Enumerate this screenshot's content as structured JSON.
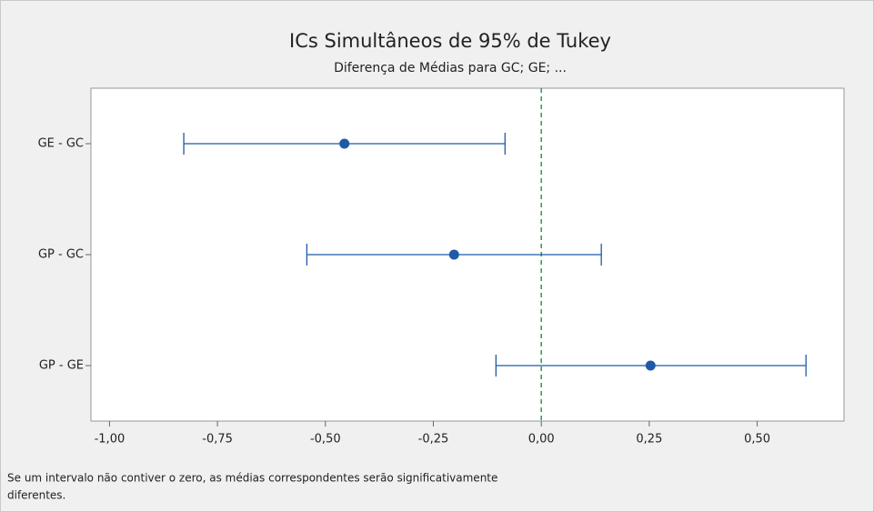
{
  "chart_data": {
    "type": "interval",
    "title": "ICs Simultâneos de 95% de Tukey",
    "subtitle": "Diferença de Médias para GC; GE; ...",
    "categories": [
      "GE - GC",
      "GP - GC",
      "GP - GE"
    ],
    "values": [
      -0.456,
      -0.202,
      0.253
    ],
    "lower": [
      -0.828,
      -0.543,
      -0.105
    ],
    "upper": [
      -0.084,
      0.139,
      0.613
    ],
    "color": "#1f5aa6",
    "reference_line": 0,
    "reference_color": "#2e9a47",
    "xlim": [
      -1.043,
      0.701
    ],
    "xticks": [
      {
        "value": -1,
        "label": "-1,00"
      },
      {
        "value": -0.75,
        "label": "-0,75"
      },
      {
        "value": -0.5,
        "label": "-0,50"
      },
      {
        "value": -0.25,
        "label": "-0,25"
      },
      {
        "value": 0,
        "label": "0,00"
      },
      {
        "value": 0.25,
        "label": "0,25"
      },
      {
        "value": 0.5,
        "label": "0,50"
      }
    ],
    "footnote": [
      "Se um intervalo não contiver o zero, as médias correspondentes serão significativamente",
      "diferentes."
    ]
  }
}
